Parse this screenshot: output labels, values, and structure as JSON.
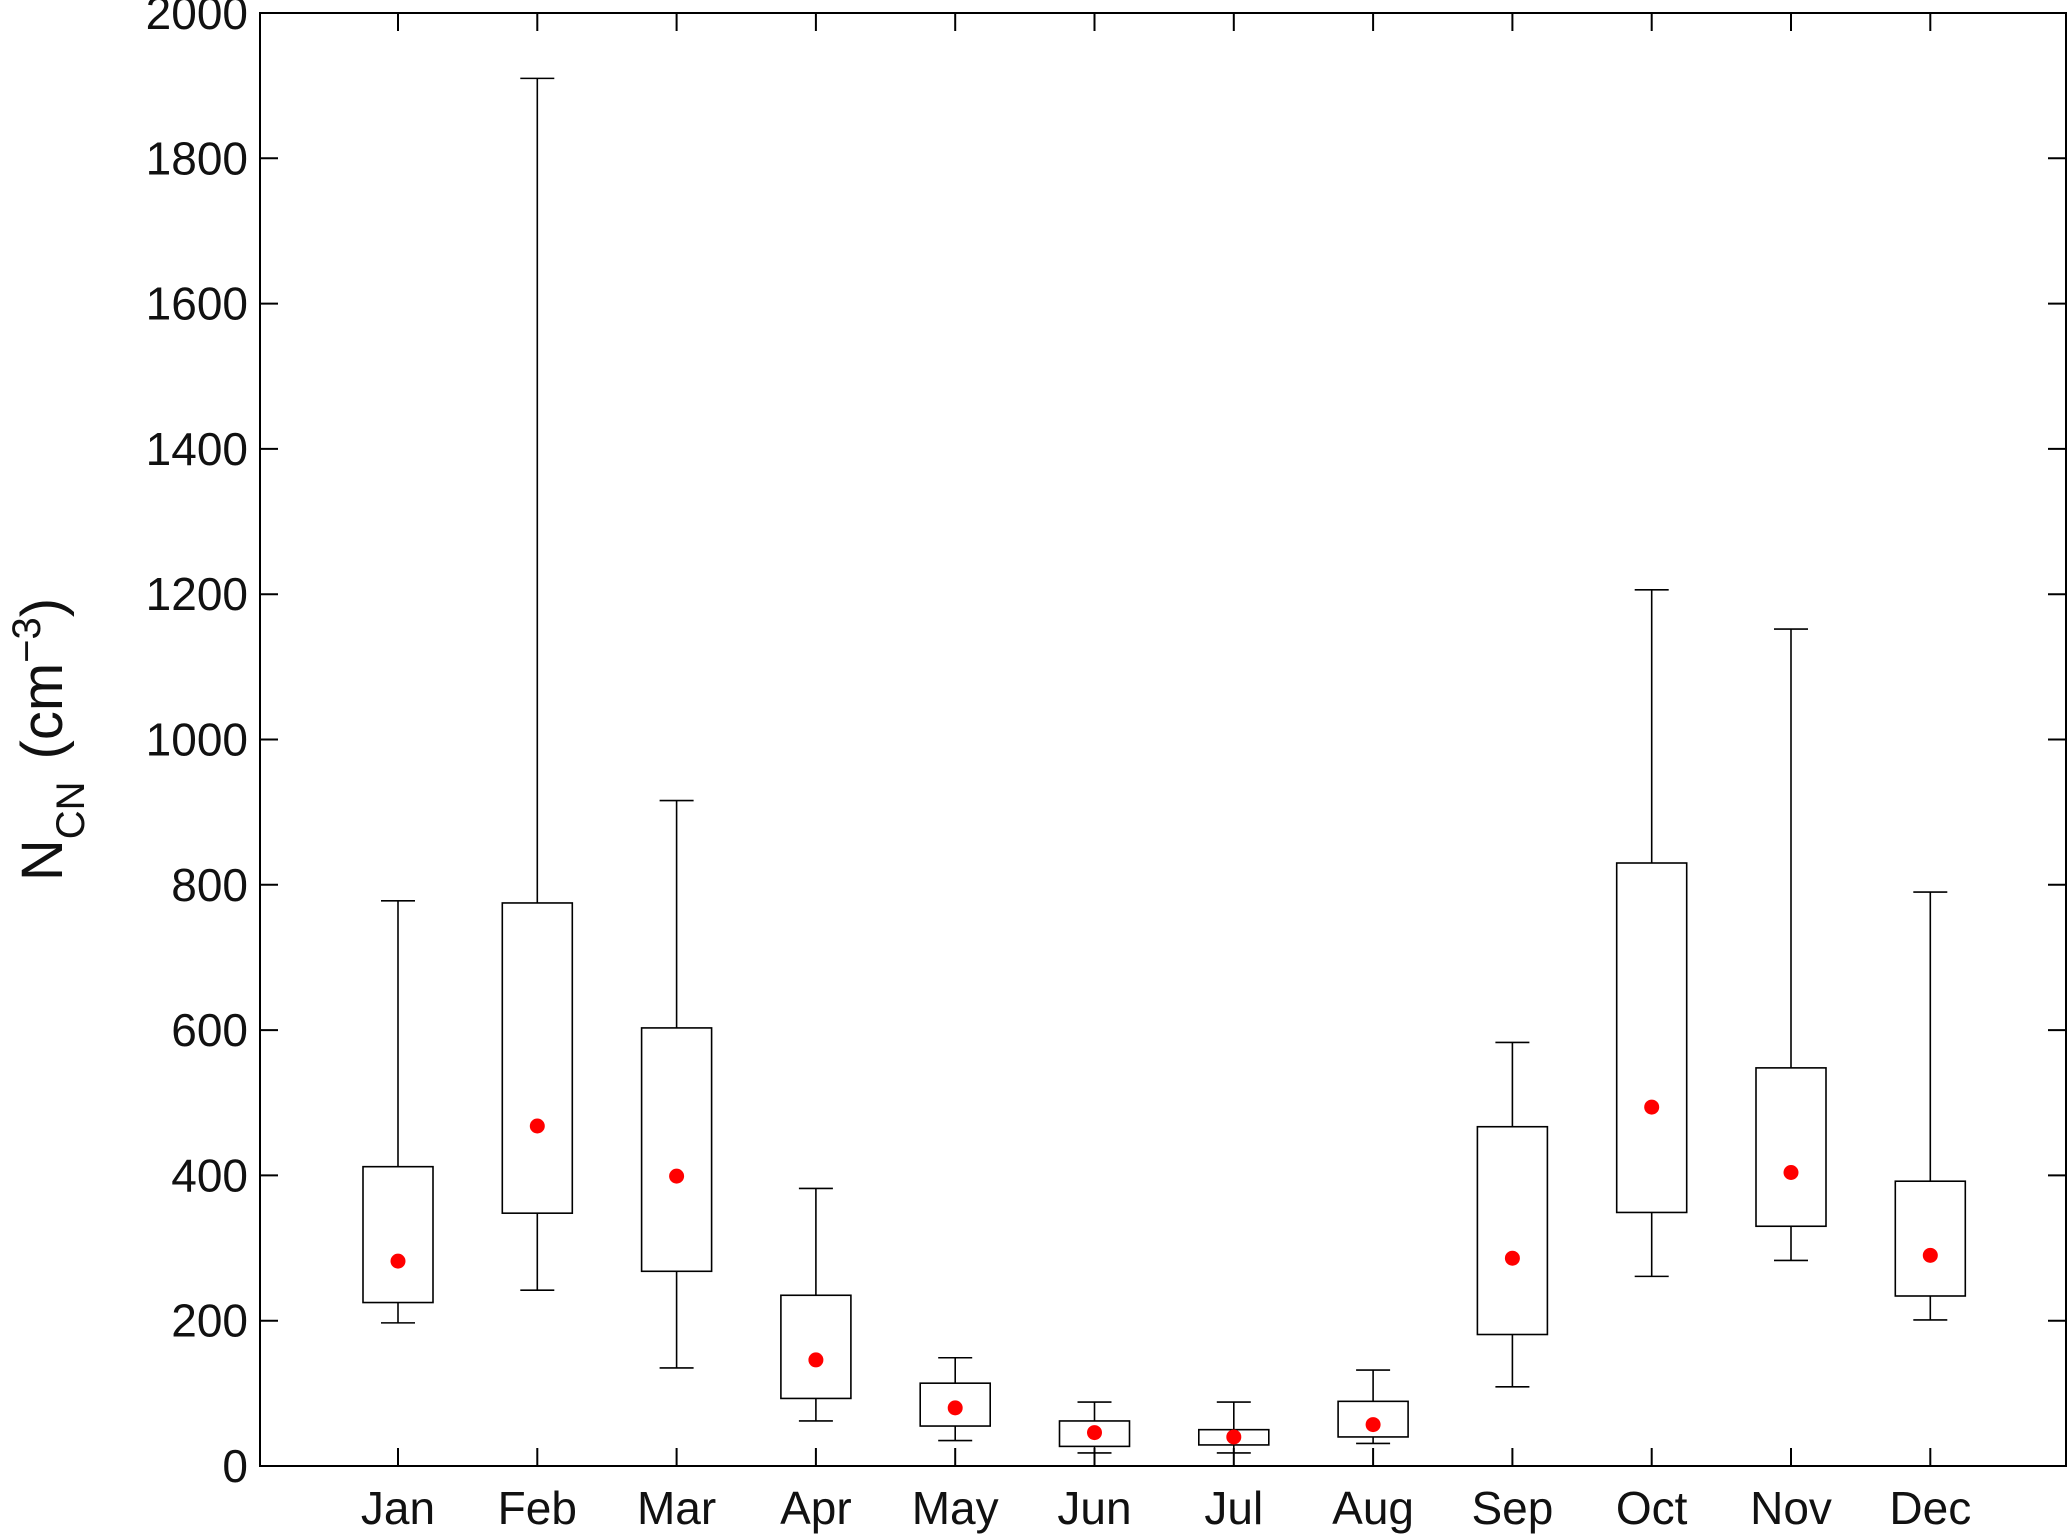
{
  "chart_data": {
    "type": "box",
    "ylabel": {
      "main": "N",
      "sub": "CN",
      "unit_open": "(cm",
      "unit_sup": "−3",
      "unit_close": ")"
    },
    "ylim": [
      0,
      2000
    ],
    "yticks": [
      0,
      200,
      400,
      600,
      800,
      1000,
      1200,
      1400,
      1600,
      1800,
      2000
    ],
    "grid": false,
    "categories": [
      "Jan",
      "Feb",
      "Mar",
      "Apr",
      "May",
      "Jun",
      "Jul",
      "Aug",
      "Sep",
      "Oct",
      "Nov",
      "Dec"
    ],
    "boxes": [
      {
        "whisker_low": 197,
        "q1": 225,
        "q3": 412,
        "whisker_high": 778,
        "mean": 282
      },
      {
        "whisker_low": 242,
        "q1": 348,
        "q3": 775,
        "whisker_high": 1910,
        "mean": 468
      },
      {
        "whisker_low": 135,
        "q1": 268,
        "q3": 603,
        "whisker_high": 916,
        "mean": 399
      },
      {
        "whisker_low": 62,
        "q1": 93,
        "q3": 235,
        "whisker_high": 382,
        "mean": 146
      },
      {
        "whisker_low": 35,
        "q1": 55,
        "q3": 114,
        "whisker_high": 149,
        "mean": 80
      },
      {
        "whisker_low": 18,
        "q1": 27,
        "q3": 62,
        "whisker_high": 88,
        "mean": 46
      },
      {
        "whisker_low": 18,
        "q1": 29,
        "q3": 50,
        "whisker_high": 88,
        "mean": 40
      },
      {
        "whisker_low": 31,
        "q1": 40,
        "q3": 89,
        "whisker_high": 132,
        "mean": 57
      },
      {
        "whisker_low": 109,
        "q1": 181,
        "q3": 467,
        "whisker_high": 583,
        "mean": 286
      },
      {
        "whisker_low": 261,
        "q1": 349,
        "q3": 830,
        "whisker_high": 1206,
        "mean": 494
      },
      {
        "whisker_low": 283,
        "q1": 330,
        "q3": 548,
        "whisker_high": 1152,
        "mean": 404
      },
      {
        "whisker_low": 201,
        "q1": 234,
        "q3": 392,
        "whisker_high": 790,
        "mean": 290
      }
    ],
    "colors": {
      "box": "#000000",
      "mean_marker": "#ff0000"
    }
  }
}
